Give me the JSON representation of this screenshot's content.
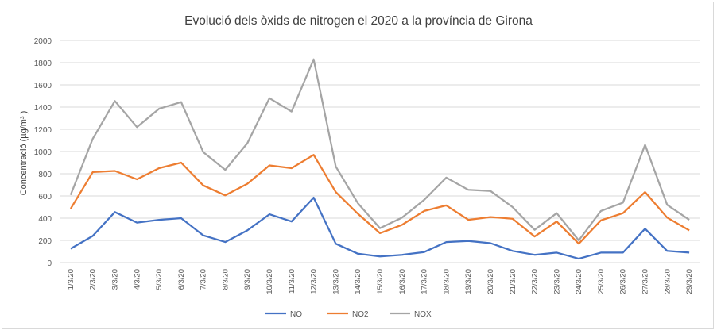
{
  "chart_data": {
    "type": "line",
    "title": "Evolució dels òxids de nitrogen el 2020 a la província de Girona",
    "ylabel": "Concentració (µg/m³ )",
    "xlabel": "",
    "ylim": [
      0,
      2000
    ],
    "yticks": [
      0,
      200,
      400,
      600,
      800,
      1000,
      1200,
      1400,
      1600,
      1800,
      2000
    ],
    "grid": true,
    "legend_position": "bottom",
    "categories": [
      "1/3/20",
      "2/3/20",
      "3/3/20",
      "4/3/20",
      "5/3/20",
      "6/3/20",
      "7/3/20",
      "8/3/20",
      "9/3/20",
      "10/3/20",
      "11/3/20",
      "12/3/20",
      "13/3/20",
      "14/3/20",
      "15/3/20",
      "16/3/20",
      "17/3/20",
      "18/3/20",
      "19/3/20",
      "20/3/20",
      "21/3/20",
      "22/3/20",
      "23/3/20",
      "24/3/20",
      "25/3/20",
      "26/3/20",
      "27/3/20",
      "28/3/20",
      "29/3/20"
    ],
    "series": [
      {
        "name": "NO",
        "color": "#4472c4",
        "values": [
          125,
          240,
          455,
          360,
          385,
          400,
          245,
          185,
          290,
          435,
          370,
          585,
          170,
          80,
          55,
          70,
          95,
          185,
          195,
          175,
          105,
          70,
          90,
          35,
          90,
          90,
          305,
          105,
          90
        ]
      },
      {
        "name": "NO2",
        "color": "#ed7d31",
        "values": [
          485,
          815,
          825,
          750,
          850,
          900,
          695,
          605,
          710,
          875,
          850,
          970,
          635,
          440,
          265,
          340,
          465,
          515,
          385,
          410,
          395,
          235,
          370,
          170,
          380,
          445,
          635,
          405,
          290
        ]
      },
      {
        "name": "NOX",
        "color": "#a5a5a5",
        "values": [
          610,
          1115,
          1455,
          1220,
          1385,
          1445,
          995,
          835,
          1075,
          1480,
          1360,
          1830,
          865,
          535,
          310,
          405,
          565,
          765,
          655,
          645,
          500,
          295,
          445,
          200,
          465,
          540,
          1060,
          520,
          385
        ]
      }
    ]
  }
}
